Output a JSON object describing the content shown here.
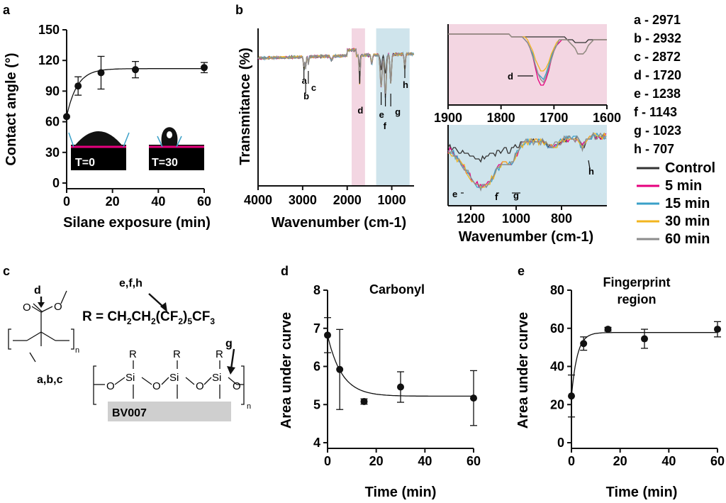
{
  "panels": {
    "a": "a",
    "b": "b",
    "c": "c",
    "d": "d",
    "e": "e"
  },
  "chart_data": [
    {
      "id": "a",
      "type": "scatter",
      "xlabel": "Silane exposure (min)",
      "ylabel": "Contact angle (°)",
      "xlim": [
        0,
        60
      ],
      "ylim": [
        0,
        150
      ],
      "xticks": [
        0,
        20,
        40,
        60
      ],
      "yticks": [
        0,
        30,
        60,
        90,
        120,
        150
      ],
      "points": [
        {
          "x": 0,
          "y": 65,
          "err": 0
        },
        {
          "x": 5,
          "y": 95,
          "err": 9
        },
        {
          "x": 15,
          "y": 108,
          "err": 16
        },
        {
          "x": 30,
          "y": 111,
          "err": 8
        },
        {
          "x": 60,
          "y": 113,
          "err": 5
        }
      ],
      "fit": {
        "y0": 65,
        "plateau": 112,
        "k": 0.22
      },
      "insets": [
        "T=0",
        "T=30"
      ]
    },
    {
      "id": "b",
      "type": "line",
      "xlabel": "Wavenumber (cm-1)",
      "ylabel": "Transmitance (%)",
      "xlim": [
        4000,
        500
      ],
      "xticks": [
        4000,
        3000,
        2000,
        1000
      ],
      "peak_labels": [
        "a",
        "b",
        "c",
        "d",
        "e",
        "f",
        "g",
        "h"
      ],
      "legend_peaks": [
        "a - 2971",
        "b - 2932",
        "c - 2872",
        "d - 1720",
        "e - 1238",
        "f - 1143",
        "g - 1023",
        "h - 707"
      ],
      "series": [
        {
          "name": "Control",
          "color": "#333333"
        },
        {
          "name": "5 min",
          "color": "#e6007e"
        },
        {
          "name": "15 min",
          "color": "#3aa0c8"
        },
        {
          "name": "30 min",
          "color": "#f2b51f"
        },
        {
          "name": "60 min",
          "color": "#8c8c8c"
        }
      ],
      "regions": [
        {
          "from": 1900,
          "to": 1600,
          "color": "#f3d6e2"
        },
        {
          "from": 1350,
          "to": 600,
          "color": "#cfe4ec"
        }
      ]
    },
    {
      "id": "b-inset-carbonyl",
      "type": "line",
      "xlim": [
        1900,
        1600
      ],
      "xticks": [
        1900,
        1800,
        1700,
        1600
      ],
      "peak_labels": [
        "d"
      ]
    },
    {
      "id": "b-inset-fingerprint",
      "type": "line",
      "xlabel": "Wavenumber (cm-1)",
      "xlim": [
        1300,
        600
      ],
      "xticks": [
        1200,
        1000,
        800
      ],
      "peak_labels": [
        "e",
        "f",
        "g",
        "h"
      ]
    },
    {
      "id": "d",
      "type": "scatter",
      "title": "Carbonyl",
      "xlabel": "Time (min)",
      "ylabel": "Area under curve",
      "xlim": [
        0,
        60
      ],
      "ylim": [
        4,
        8
      ],
      "xticks": [
        0,
        20,
        40,
        60
      ],
      "yticks": [
        4,
        5,
        6,
        7,
        8
      ],
      "points": [
        {
          "x": 0,
          "y": 6.82,
          "err": 0.46
        },
        {
          "x": 5,
          "y": 5.92,
          "err": 1.05
        },
        {
          "x": 15,
          "y": 5.08,
          "err": 0.07
        },
        {
          "x": 30,
          "y": 5.46,
          "err": 0.4
        },
        {
          "x": 60,
          "y": 5.17,
          "err": 0.72
        }
      ],
      "fit": {
        "y0": 6.82,
        "plateau": 5.22,
        "k": 0.17
      }
    },
    {
      "id": "e",
      "type": "scatter",
      "title": "Fingerprint region",
      "xlabel": "Time (min)",
      "ylabel": "Area under curve",
      "xlim": [
        0,
        60
      ],
      "ylim": [
        0,
        80
      ],
      "xticks": [
        0,
        20,
        40,
        60
      ],
      "yticks": [
        0,
        20,
        40,
        60,
        80
      ],
      "points": [
        {
          "x": 0,
          "y": 24.5,
          "err": 11
        },
        {
          "x": 5,
          "y": 52,
          "err": 3.5
        },
        {
          "x": 15,
          "y": 59.5,
          "err": 1
        },
        {
          "x": 30,
          "y": 54.5,
          "err": 5
        },
        {
          "x": 60,
          "y": 59.5,
          "err": 4
        }
      ],
      "fit": {
        "y0": 24,
        "plateau": 57.8,
        "k": 0.42
      }
    }
  ],
  "chem": {
    "r_group_prefix": "R = CH",
    "r_group": "R = CH2CH2(CF2)5CF3",
    "sub_2": "2",
    "sub_5": "5",
    "sub_3": "3",
    "mid": "CH",
    "cf": "(CF",
    "end": ")",
    "cf3": "CF",
    "labels_efh": "e,f,h",
    "label_g": "g",
    "label_d": "d",
    "label_abc": "a,b,c",
    "substrate": "BV007",
    "si": "Si",
    "o": "O",
    "r": "R",
    "n": "n"
  }
}
